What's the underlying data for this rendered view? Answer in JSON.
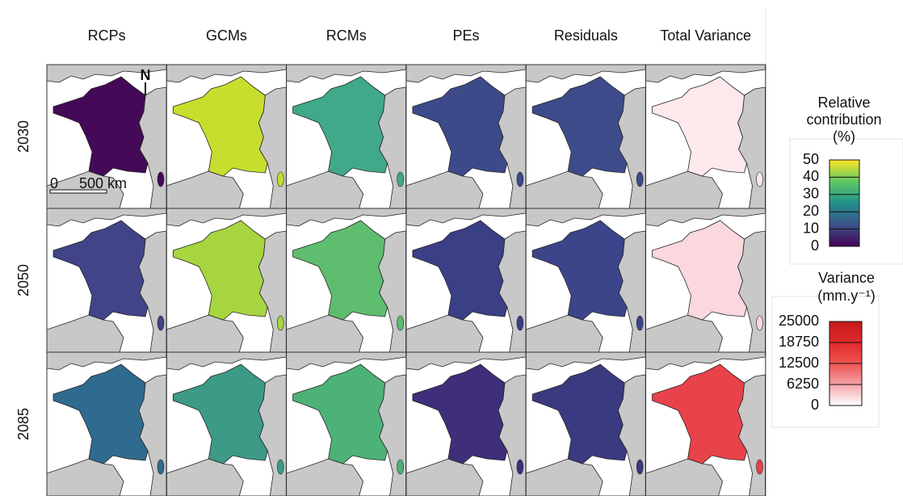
{
  "columns": [
    "RCPs",
    "GCMs",
    "RCMs",
    "PEs",
    "Residuals",
    "Total Variance"
  ],
  "rows": [
    "2030",
    "2050",
    "2085"
  ],
  "cell_colors": [
    [
      "#440a57",
      "#c8de2e",
      "#3fa98a",
      "#3d4a8a",
      "#3e4b8a",
      "#fde8ec"
    ],
    [
      "#414488",
      "#a7d540",
      "#5fbd6f",
      "#3a3f86",
      "#3c458a",
      "#fbd7de"
    ],
    [
      "#2f6b8e",
      "#3c9a87",
      "#4cb278",
      "#3f2e7a",
      "#3a3a80",
      "#e8424a"
    ]
  ],
  "north_label": "N",
  "scale_bar": [
    "0",
    "500 km"
  ],
  "legends": [
    {
      "title": [
        "Relative",
        "contribution",
        "(%)"
      ],
      "range": [
        0,
        50
      ],
      "ticks": [
        0,
        10,
        20,
        30,
        40,
        50
      ],
      "colors": [
        "#440154",
        "#3b528b",
        "#21918c",
        "#5ec962",
        "#fde725"
      ]
    },
    {
      "title": [
        "Variance",
        "(mm.y⁻¹)"
      ],
      "range": [
        0,
        25000
      ],
      "ticks": [
        0,
        6250,
        12500,
        18750,
        25000
      ],
      "colors": [
        "#ffffff",
        "#f6a3a8",
        "#ee5350",
        "#e02a2a",
        "#c41a1a"
      ]
    }
  ]
}
